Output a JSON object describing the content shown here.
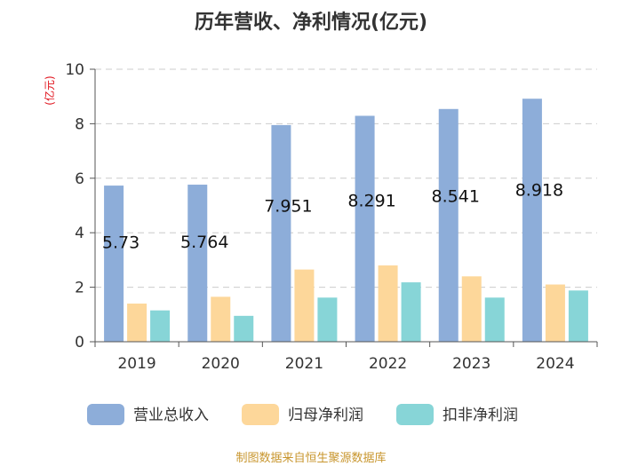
{
  "chart_data": {
    "type": "bar",
    "title": "历年营收、净利情况(亿元)",
    "ylabel": "(亿元)",
    "xlabel": "",
    "ylim": [
      0,
      10
    ],
    "yticks": [
      0,
      2,
      4,
      6,
      8,
      10
    ],
    "yticks_labels": [
      "0",
      "2",
      "4",
      "6",
      "8",
      "10"
    ],
    "grid": true,
    "legend_position": "bottom",
    "categories": [
      "2019",
      "2020",
      "2021",
      "2022",
      "2023",
      "2024"
    ],
    "series": [
      {
        "name": "营业总收入",
        "color": "#8dadd9",
        "values": [
          5.73,
          5.764,
          7.951,
          8.291,
          8.541,
          8.918
        ],
        "labels": [
          "5.73",
          "5.764",
          "7.951",
          "8.291",
          "8.541",
          "8.918"
        ]
      },
      {
        "name": "归母净利润",
        "color": "#fdd79a",
        "values": [
          1.4,
          1.65,
          2.65,
          2.8,
          2.4,
          2.1
        ]
      },
      {
        "name": "扣非净利润",
        "color": "#87d5d7",
        "values": [
          1.15,
          0.95,
          1.62,
          2.18,
          1.62,
          1.88
        ]
      }
    ],
    "source": "制图数据来自恒生聚源数据库"
  }
}
